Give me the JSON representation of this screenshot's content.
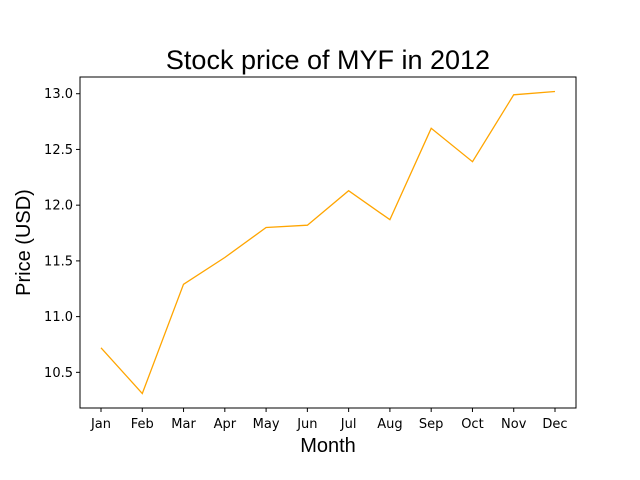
{
  "chart_data": {
    "type": "line",
    "title": "Stock price of MYF in 2012",
    "xlabel": "Month",
    "ylabel": "Price (USD)",
    "categories": [
      "Jan",
      "Feb",
      "Mar",
      "Apr",
      "May",
      "Jun",
      "Jul",
      "Aug",
      "Sep",
      "Oct",
      "Nov",
      "Dec"
    ],
    "series": [
      {
        "values": [
          10.72,
          10.31,
          11.29,
          11.53,
          11.8,
          11.82,
          12.13,
          11.87,
          12.69,
          12.39,
          12.99,
          13.02
        ],
        "color": "#ffa500"
      }
    ],
    "ylim": [
      10.18,
      13.15
    ],
    "yticks": [
      10.5,
      11.0,
      11.5,
      12.0,
      12.5,
      13.0
    ],
    "ytick_labels": [
      "10.5",
      "11.0",
      "11.5",
      "12.0",
      "12.5",
      "13.0"
    ],
    "grid": false,
    "legend": "none"
  }
}
